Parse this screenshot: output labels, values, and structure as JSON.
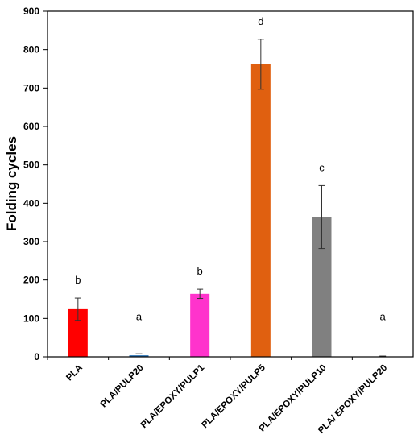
{
  "chart_data": {
    "type": "bar",
    "title": "",
    "xlabel": "",
    "ylabel": "Folding cycles",
    "ylim": [
      0,
      900
    ],
    "yticks": [
      0,
      100,
      200,
      300,
      400,
      500,
      600,
      700,
      800,
      900
    ],
    "grid": false,
    "categories": [
      "PLA",
      "PLA/PULP20",
      "PLA/EPOXY/PULP1",
      "PLA/EPOXY/PULP5",
      "PLA/EPOXY/PULP10",
      "PLA/ EPOXY/PULP20"
    ],
    "values": [
      124,
      4,
      164,
      762,
      364,
      1
    ],
    "errors": [
      29,
      4,
      12,
      65,
      82,
      1
    ],
    "colors": [
      "#ff0000",
      "#2e75b6",
      "#ff33cc",
      "#e06010",
      "#808080",
      "#808080"
    ],
    "significance": [
      "b",
      "a",
      "b",
      "d",
      "c",
      "a"
    ]
  }
}
